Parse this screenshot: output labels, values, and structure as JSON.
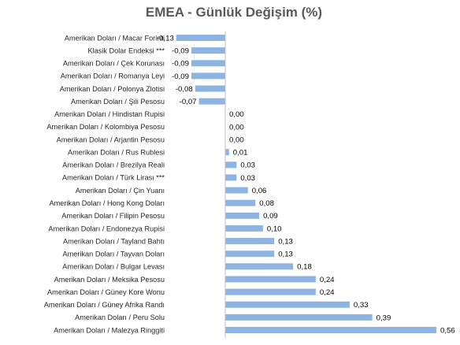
{
  "chart_data": {
    "type": "bar",
    "orientation": "horizontal",
    "title": "EMEA - Günlük Değişim (%)",
    "xlabel": "",
    "ylabel": "",
    "grid": false,
    "legend": "none",
    "bar_color": "#8EB4E3",
    "axis_color": "#BFBFBF",
    "categories": [
      "Amerikan Doları / Macar Forinti",
      "Klasik Dolar Endeksi ***",
      "Amerikan Doları / Çek Korunası",
      "Amerikan Doları / Romanya Leyi",
      "Amerikan Doları / Polonya Zlotisi",
      "Amerikan Doları / Şili Pesosu",
      "Amerikan Doları / Hindistan Rupisi",
      "Amerikan Doları / Kolombiya Pesosu",
      "Amerikan Doları / Arjantin Pesosu",
      "Amerikan Doları / Rus Rublesi",
      "Amerikan Doları / Brezilya Reali",
      "Amerikan Doları / Türk Lirası ***",
      "Amerikan Doları / Çin Yuanı",
      "Amerikan Doları / Hong Kong Doları",
      "Amerikan Doları / Filipin Pesosu",
      "Amerikan Doları / Endonezya Rupisi",
      "Amerikan Doları / Tayland Bahtı",
      "Amerikan Doları / Tayvan Doları",
      "Amerikan Doları / Bulgar Levası",
      "Amerikan Doları / Meksika Pesosu",
      "Amerikan Doları / Güney Kore Wonu",
      "Amerikan Doları / Güney Afrika Randı",
      "Amerikan Doları / Peru Solu",
      "Amerikan Doları / Malezya Ringgiti"
    ],
    "values": [
      -0.13,
      -0.09,
      -0.09,
      -0.09,
      -0.08,
      -0.07,
      0.0,
      0.0,
      0.0,
      0.01,
      0.03,
      0.03,
      0.06,
      0.08,
      0.09,
      0.1,
      0.13,
      0.13,
      0.18,
      0.24,
      0.24,
      0.33,
      0.39,
      0.56
    ],
    "value_labels": [
      "-0,13",
      "-0,09",
      "-0,09",
      "-0,09",
      "-0,08",
      "-0,07",
      "0,00",
      "0,00",
      "0,00",
      "0,01",
      "0,03",
      "0,03",
      "0,06",
      "0,08",
      "0,09",
      "0,10",
      "0,13",
      "0,13",
      "0,18",
      "0,24",
      "0,24",
      "0,33",
      "0,39",
      "0,56"
    ],
    "xlim": [
      -0.13,
      0.56
    ]
  }
}
